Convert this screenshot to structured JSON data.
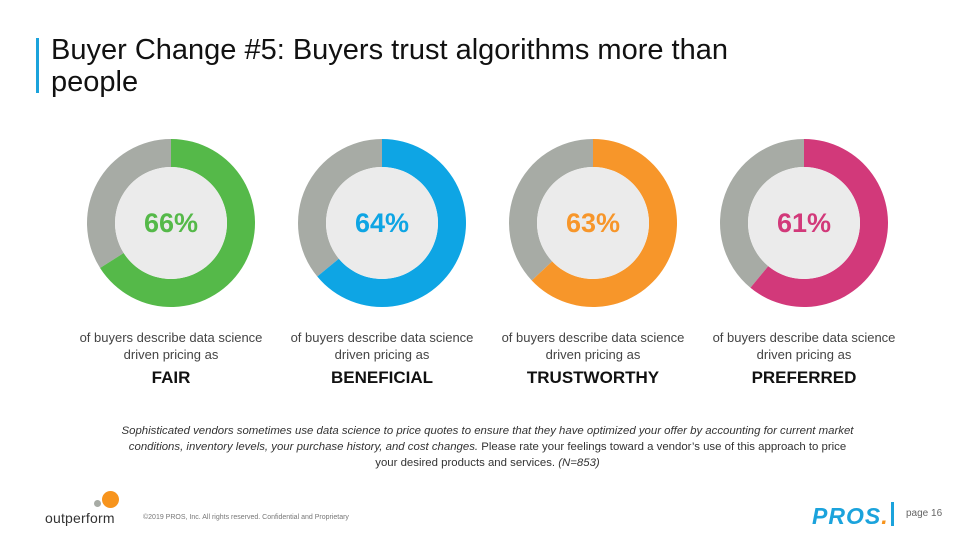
{
  "title": "Buyer Change #5: Buyers trust algorithms more than people",
  "chart_data": {
    "type": "pie",
    "variant": "donut",
    "remainder_color": "#a7aba5",
    "inner_color": "#ebebeb",
    "series": [
      {
        "value": 66,
        "label": "66%",
        "color": "#55b949",
        "caption": "of buyers describe data science driven pricing as",
        "word": "FAIR"
      },
      {
        "value": 64,
        "label": "64%",
        "color": "#0ea5e4",
        "caption": "of buyers describe data science driven pricing as",
        "word": "BENEFICIAL"
      },
      {
        "value": 63,
        "label": "63%",
        "color": "#f7962a",
        "caption": "of buyers describe data science driven pricing as",
        "word": "TRUSTWORTHY"
      },
      {
        "value": 61,
        "label": "61%",
        "color": "#d2397a",
        "caption": "of buyers describe data science driven pricing as",
        "word": "PREFERRED"
      }
    ]
  },
  "footnote": {
    "italic_part": "Sophisticated vendors sometimes use data science to price quotes to ensure that they have optimized your offer by accounting for current market conditions, inventory levels, your purchase history, and cost changes.",
    "plain_part": " Please rate your feelings toward a vendor’s use of this approach to price your desired products and services. ",
    "n_part": "(N=853)"
  },
  "footer": {
    "logo_text": "outperform",
    "copyright": "©2019 PROS, Inc. All rights reserved. Confidential and Proprietary",
    "pros_logo": "PROS",
    "pros_dot": ".",
    "page": "page 16"
  }
}
